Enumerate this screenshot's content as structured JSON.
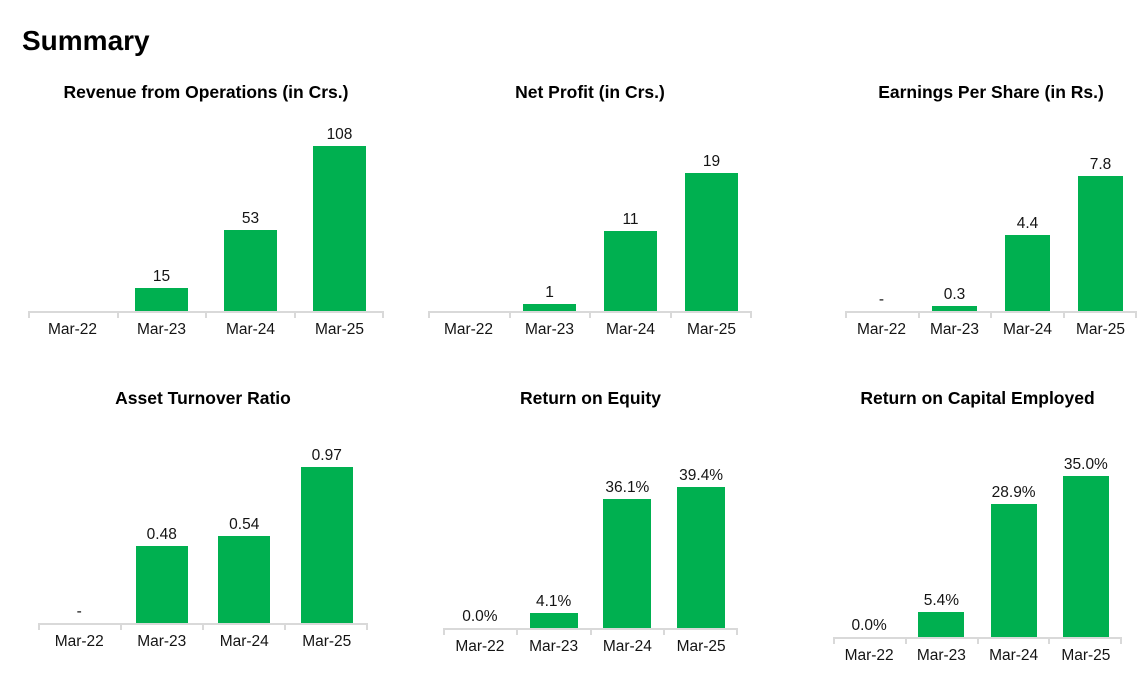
{
  "page": {
    "title": "Summary"
  },
  "colors": {
    "bar_green": "#00B050",
    "axis_gray": "#D9D9D9",
    "label_text": "#141414"
  },
  "chart_data": [
    {
      "type": "bar",
      "title": "Revenue from Operations (in Crs.)",
      "categories": [
        "Mar-22",
        "Mar-23",
        "Mar-24",
        "Mar-25"
      ],
      "values": [
        0,
        15,
        53,
        108
      ],
      "bar_labels": [
        "",
        "15",
        "53",
        "108"
      ],
      "ylim": [
        0,
        120
      ],
      "xlabel": "",
      "ylabel": "",
      "grid": false,
      "legend": "none"
    },
    {
      "type": "bar",
      "title": "Net Profit (in Crs.)",
      "categories": [
        "Mar-22",
        "Mar-23",
        "Mar-24",
        "Mar-25"
      ],
      "values": [
        0,
        1,
        11,
        19
      ],
      "bar_labels": [
        "",
        "1",
        "11",
        "19"
      ],
      "ylim": [
        0,
        20
      ],
      "xlabel": "",
      "ylabel": "",
      "grid": false,
      "legend": "none"
    },
    {
      "type": "bar",
      "title": "Earnings Per Share (in Rs.)",
      "categories": [
        "Mar-22",
        "Mar-23",
        "Mar-24",
        "Mar-25"
      ],
      "values": [
        0,
        0.3,
        4.4,
        7.8
      ],
      "bar_labels": [
        "-",
        "0.3",
        "4.4",
        "7.8"
      ],
      "ylim": [
        0,
        9
      ],
      "xlabel": "",
      "ylabel": "",
      "grid": false,
      "legend": "none"
    },
    {
      "type": "bar",
      "title": "Asset Turnover Ratio",
      "categories": [
        "Mar-22",
        "Mar-23",
        "Mar-24",
        "Mar-25"
      ],
      "values": [
        0,
        0.48,
        0.54,
        0.97
      ],
      "bar_labels": [
        "-",
        "0.48",
        "0.54",
        "0.97"
      ],
      "ylim": [
        0,
        1.2
      ],
      "xlabel": "",
      "ylabel": "",
      "grid": false,
      "legend": "none"
    },
    {
      "type": "bar",
      "title": "Return on Equity",
      "categories": [
        "Mar-22",
        "Mar-23",
        "Mar-24",
        "Mar-25"
      ],
      "values": [
        0,
        4.1,
        36.1,
        39.4
      ],
      "bar_labels": [
        "0.0%",
        "4.1%",
        "36.1%",
        "39.4%"
      ],
      "ylim": [
        0,
        45
      ],
      "xlabel": "",
      "ylabel": "",
      "grid": false,
      "legend": "none"
    },
    {
      "type": "bar",
      "title": "Return on Capital Employed",
      "categories": [
        "Mar-22",
        "Mar-23",
        "Mar-24",
        "Mar-25"
      ],
      "values": [
        0,
        5.4,
        28.9,
        35.0
      ],
      "bar_labels": [
        "0.0%",
        "5.4%",
        "28.9%",
        "35.0%"
      ],
      "ylim": [
        0,
        40
      ],
      "xlabel": "",
      "ylabel": "",
      "grid": false,
      "legend": "none"
    }
  ]
}
